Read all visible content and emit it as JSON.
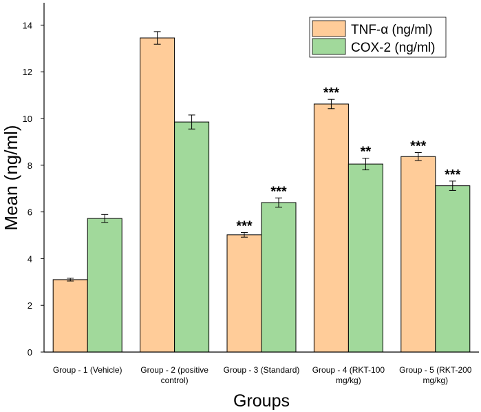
{
  "chart_data": {
    "type": "bar",
    "title": "",
    "xlabel": "Groups",
    "ylabel": "Mean (ng/ml)",
    "ylim": [
      0,
      15
    ],
    "yticks": [
      0,
      2,
      4,
      6,
      8,
      10,
      12,
      14
    ],
    "grid": false,
    "legend_position": "top-right",
    "categories": [
      [
        "Group - 1 (Vehicle)"
      ],
      [
        "Group - 2 (positive",
        "control)"
      ],
      [
        "Group - 3 (Standard)"
      ],
      [
        "Group - 4 (RKT-100",
        "mg/kg)"
      ],
      [
        "Group - 5 (RKT-200",
        "mg/kg)"
      ]
    ],
    "series": [
      {
        "name": "TNF-α (ng/ml)",
        "color": "#FFCC99",
        "values": [
          3.1,
          13.45,
          5.02,
          10.62,
          8.37
        ],
        "errors": [
          0.06,
          0.27,
          0.1,
          0.2,
          0.17
        ],
        "significance": [
          "",
          "",
          "***",
          "***",
          "***"
        ]
      },
      {
        "name": "COX-2 (ng/ml)",
        "color": "#A1D99B",
        "values": [
          5.72,
          9.85,
          6.4,
          8.05,
          7.12
        ],
        "errors": [
          0.17,
          0.3,
          0.2,
          0.25,
          0.2
        ],
        "significance": [
          "",
          "",
          "***",
          "**",
          "***"
        ]
      }
    ]
  }
}
